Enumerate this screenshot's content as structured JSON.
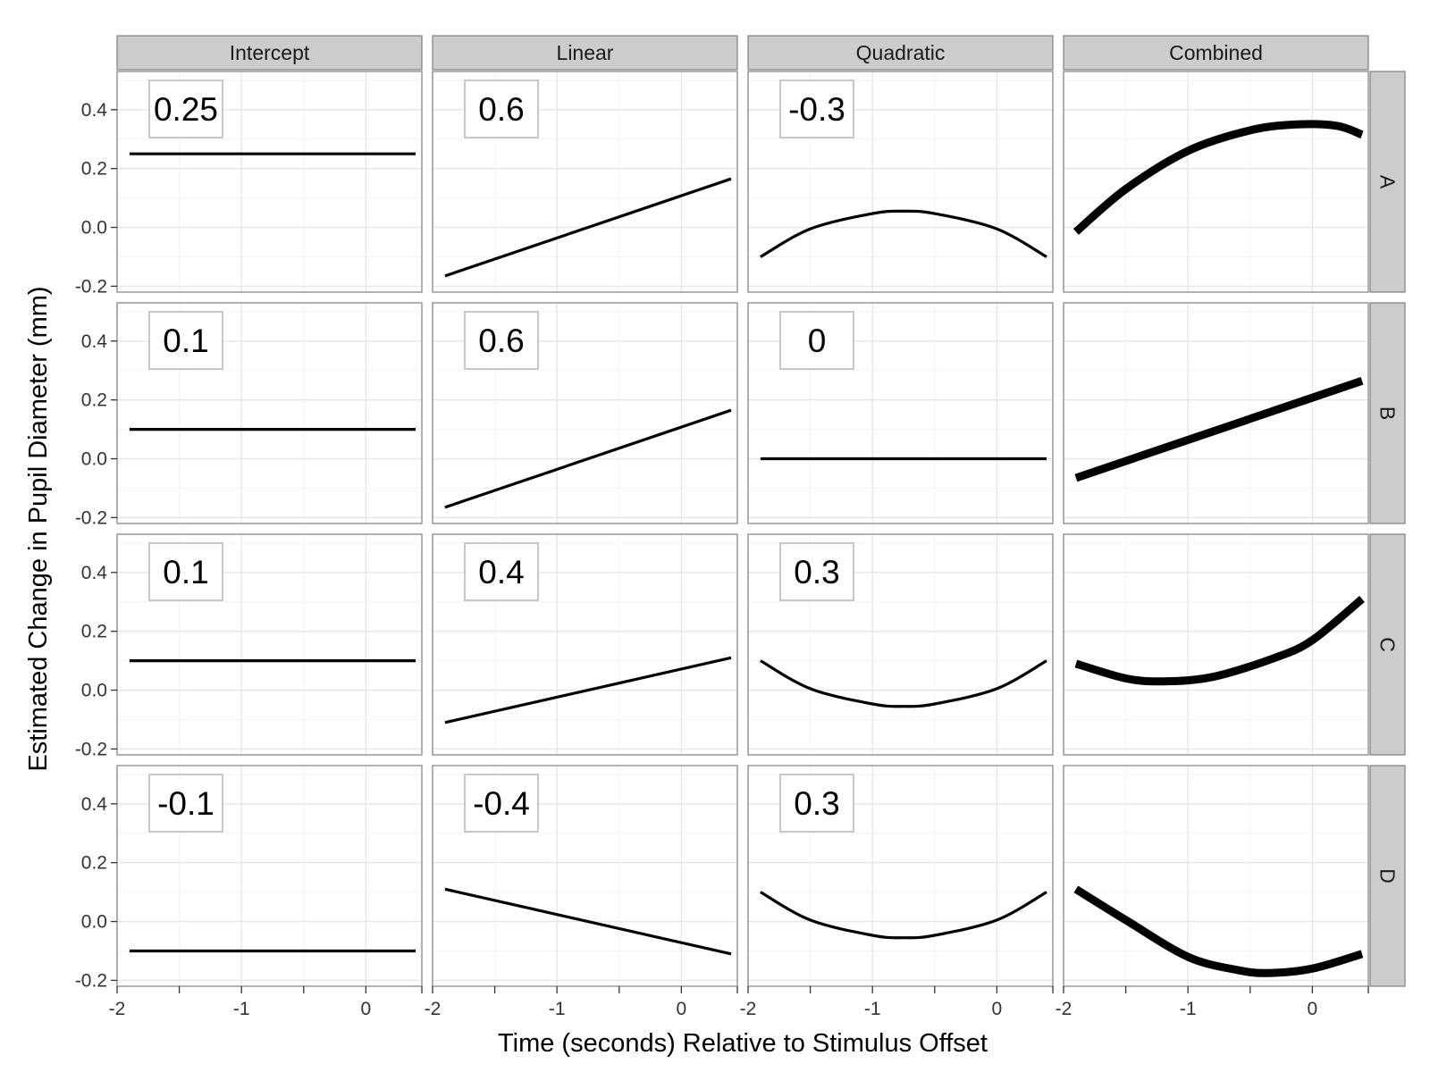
{
  "chart_data": {
    "type": "line",
    "xlabel": "Time (seconds) Relative to Stimulus Offset",
    "ylabel": "Estimated Change in Pupil Diameter (mm)",
    "columns": [
      "Intercept",
      "Linear",
      "Quadratic",
      "Combined"
    ],
    "rows": [
      "A",
      "B",
      "C",
      "D"
    ],
    "xlim": [
      -2.0,
      0.45
    ],
    "ylim": [
      -0.22,
      0.53
    ],
    "x_ticks": [
      -2,
      -1,
      0
    ],
    "x_tick_labels": [
      "-2",
      "-1",
      "0"
    ],
    "y_ticks": [
      -0.2,
      0.0,
      0.2,
      0.4
    ],
    "y_tick_labels": [
      "-0.2",
      "0.0",
      "0.2",
      "0.4"
    ],
    "grid": true,
    "panels": [
      {
        "row": "A",
        "column": "Intercept",
        "coefficient": "0.25",
        "x": [
          -1.9,
          0.4
        ],
        "y": [
          0.25,
          0.25
        ]
      },
      {
        "row": "A",
        "column": "Linear",
        "coefficient": "0.6",
        "x": [
          -1.9,
          0.4
        ],
        "y": [
          -0.165,
          0.165
        ]
      },
      {
        "row": "A",
        "column": "Quadratic",
        "coefficient": "-0.3",
        "x": [
          -1.9,
          -1.5,
          -1.0,
          -0.75,
          -0.5,
          0.0,
          0.4
        ],
        "y": [
          -0.1,
          -0.005,
          0.047,
          0.055,
          0.047,
          -0.005,
          -0.1
        ]
      },
      {
        "row": "A",
        "column": "Combined",
        "coefficient": "",
        "x": [
          -1.9,
          -1.5,
          -1.0,
          -0.5,
          -0.12,
          0.2,
          0.4
        ],
        "y": [
          -0.015,
          0.13,
          0.26,
          0.33,
          0.35,
          0.345,
          0.315
        ]
      },
      {
        "row": "B",
        "column": "Intercept",
        "coefficient": "0.1",
        "x": [
          -1.9,
          0.4
        ],
        "y": [
          0.1,
          0.1
        ]
      },
      {
        "row": "B",
        "column": "Linear",
        "coefficient": "0.6",
        "x": [
          -1.9,
          0.4
        ],
        "y": [
          -0.165,
          0.165
        ]
      },
      {
        "row": "B",
        "column": "Quadratic",
        "coefficient": "0",
        "x": [
          -1.9,
          0.4
        ],
        "y": [
          0.0,
          0.0
        ]
      },
      {
        "row": "B",
        "column": "Combined",
        "coefficient": "",
        "x": [
          -1.9,
          0.4
        ],
        "y": [
          -0.065,
          0.265
        ]
      },
      {
        "row": "C",
        "column": "Intercept",
        "coefficient": "0.1",
        "x": [
          -1.9,
          0.4
        ],
        "y": [
          0.1,
          0.1
        ]
      },
      {
        "row": "C",
        "column": "Linear",
        "coefficient": "0.4",
        "x": [
          -1.9,
          0.4
        ],
        "y": [
          -0.11,
          0.11
        ]
      },
      {
        "row": "C",
        "column": "Quadratic",
        "coefficient": "0.3",
        "x": [
          -1.9,
          -1.5,
          -1.0,
          -0.75,
          -0.5,
          0.0,
          0.4
        ],
        "y": [
          0.1,
          0.005,
          -0.047,
          -0.055,
          -0.047,
          0.005,
          0.1
        ]
      },
      {
        "row": "C",
        "column": "Combined",
        "coefficient": "",
        "x": [
          -1.9,
          -1.5,
          -1.2,
          -0.8,
          -0.3,
          0.0,
          0.4
        ],
        "y": [
          0.09,
          0.04,
          0.03,
          0.045,
          0.11,
          0.17,
          0.31
        ]
      },
      {
        "row": "D",
        "column": "Intercept",
        "coefficient": "-0.1",
        "x": [
          -1.9,
          0.4
        ],
        "y": [
          -0.1,
          -0.1
        ]
      },
      {
        "row": "D",
        "column": "Linear",
        "coefficient": "-0.4",
        "x": [
          -1.9,
          0.4
        ],
        "y": [
          0.11,
          -0.11
        ]
      },
      {
        "row": "D",
        "column": "Quadratic",
        "coefficient": "0.3",
        "x": [
          -1.9,
          -1.5,
          -1.0,
          -0.75,
          -0.5,
          0.0,
          0.4
        ],
        "y": [
          0.1,
          0.005,
          -0.047,
          -0.055,
          -0.047,
          0.005,
          0.1
        ]
      },
      {
        "row": "D",
        "column": "Combined",
        "coefficient": "",
        "x": [
          -1.9,
          -1.5,
          -1.0,
          -0.6,
          -0.35,
          0.0,
          0.4
        ],
        "y": [
          0.11,
          0.005,
          -0.12,
          -0.165,
          -0.175,
          -0.16,
          -0.11
        ]
      }
    ]
  },
  "colors": {
    "panel_background": "#ffffff",
    "panel_border": "#7f7f7f",
    "strip_fill": "#cccccc",
    "grid_major": "#e6e6e6",
    "grid_minor": "#f3f3f3",
    "line": "#000000",
    "label_border": "#c8c8c8"
  }
}
